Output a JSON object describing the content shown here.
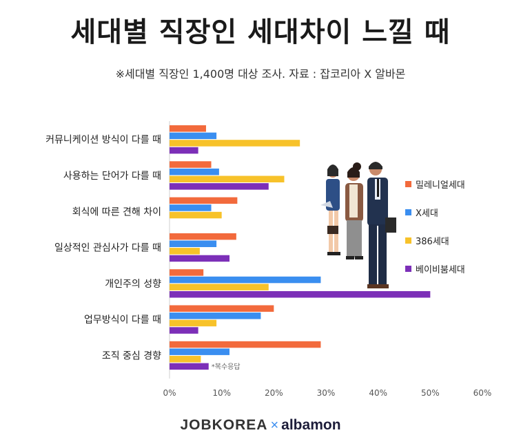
{
  "title": "세대별 직장인 세대차이 느낄 때",
  "subtitle": "※세대별 직장인 1,400명 대상 조사. 자료 : 잡코리아 X 알바몬",
  "note": "*복수응답",
  "footer": {
    "jobkorea": "JOBKOREA",
    "times": "×",
    "albamon": "albamon"
  },
  "colors": {
    "millennial": "#f26a3c",
    "genx": "#3a8ef0",
    "g386": "#f7c22a",
    "boomer": "#7c2fb8"
  },
  "chart_data": {
    "type": "bar",
    "orientation": "horizontal",
    "categories": [
      "커뮤니케이션 방식이 다를 때",
      "사용하는 단어가 다를 때",
      "회식에 따른 견해 차이",
      "일상적인 관심사가 다를 때",
      "개인주의 성향",
      "업무방식이 다를 때",
      "조직 중심 경향"
    ],
    "series": [
      {
        "name": "밀레니얼세대",
        "color": "#f26a3c",
        "values": [
          7,
          8,
          13,
          12.8,
          6.5,
          20,
          29
        ]
      },
      {
        "name": "X세대",
        "color": "#3a8ef0",
        "values": [
          9,
          9.5,
          8,
          9,
          29,
          17.5,
          11.5
        ]
      },
      {
        "name": "386세대",
        "color": "#f7c22a",
        "values": [
          25,
          22,
          10,
          5.8,
          19,
          9,
          6
        ]
      },
      {
        "name": "베이비붐세대",
        "color": "#7c2fb8",
        "values": [
          5.5,
          19,
          0,
          11.5,
          50,
          5.5,
          7.5
        ]
      }
    ],
    "xlim": [
      0,
      60
    ],
    "xticks": [
      "0%",
      "10%",
      "20%",
      "30%",
      "40%",
      "50%",
      "60%"
    ],
    "legend_position": "right"
  }
}
